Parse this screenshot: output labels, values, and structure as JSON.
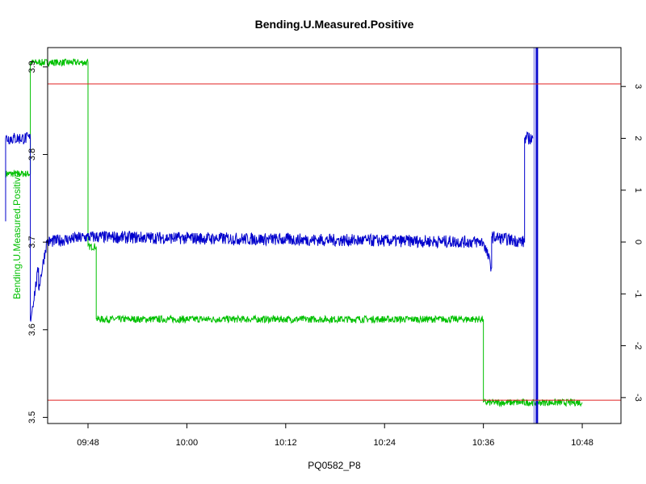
{
  "chart_data": {
    "type": "line",
    "title": "Bending.U.Measured.Positive",
    "xlabel": "PQ0582_P8",
    "ylabel_left": "Bending.U.Measured.Positive",
    "ylim_left": [
      3.493,
      3.922
    ],
    "ylim_right": [
      -3.5,
      3.75
    ],
    "xlim_minutes": [
      583.1,
      652.7
    ],
    "left_ticks": [
      3.5,
      3.6,
      3.7,
      3.8,
      3.9
    ],
    "right_ticks": [
      -3,
      -2,
      -1,
      0,
      1,
      2,
      3
    ],
    "x_ticks": [
      "09:48",
      "10:00",
      "10:12",
      "10:24",
      "10:36",
      "10:48"
    ],
    "series": [
      {
        "axis": "left",
        "color": "#00c000",
        "points": [
          [
            "09:38",
            3.778
          ],
          [
            "09:41",
            3.778
          ],
          [
            "09:41",
            3.905
          ],
          [
            "09:48",
            3.905
          ],
          [
            "09:48",
            3.695
          ],
          [
            "09:49",
            3.695
          ],
          [
            "09:49",
            3.612
          ],
          [
            "10:36",
            3.612
          ],
          [
            "10:36",
            3.517
          ],
          [
            "10:48",
            3.517
          ]
        ],
        "noise": 0.004
      },
      {
        "axis": "right",
        "color": "#0000cc",
        "points": [
          [
            "09:38",
            0.4
          ],
          [
            "09:38",
            2.0
          ],
          [
            "09:41",
            2.0
          ],
          [
            "09:41",
            -1.5
          ],
          [
            "09:42",
            -0.5
          ],
          [
            "09:42",
            -0.9
          ],
          [
            "09:43",
            0.0
          ],
          [
            "09:48",
            0.1
          ],
          [
            "10:36",
            0.0
          ],
          [
            "10:37",
            -0.5
          ],
          [
            "10:37",
            0.1
          ],
          [
            "10:41",
            0.0
          ],
          [
            "10:41",
            2.0
          ],
          [
            "10:42",
            2.0
          ]
        ],
        "noise": 0.12
      }
    ],
    "reference_lines": [
      {
        "axis": "right",
        "value": 3.05,
        "color": "#e02020"
      },
      {
        "axis": "right",
        "value": -3.05,
        "color": "#e02020"
      }
    ],
    "grid": false
  }
}
